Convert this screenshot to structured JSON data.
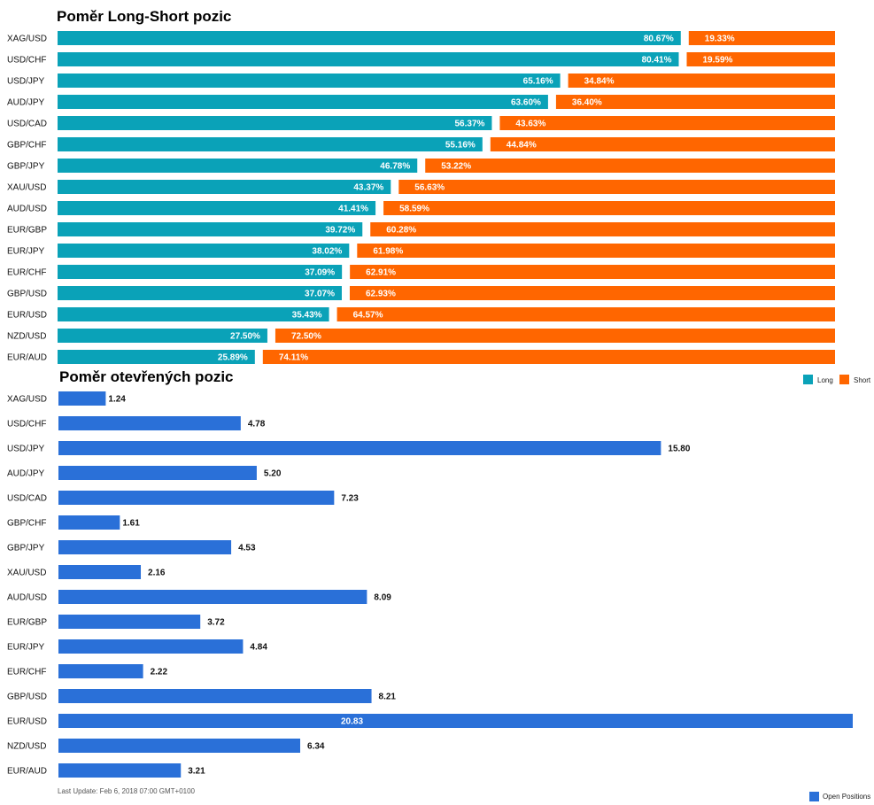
{
  "colors": {
    "long": "#0aa2b8",
    "short": "#ff6600",
    "open": "#2a70d8"
  },
  "chart_data": [
    {
      "type": "bar",
      "orientation": "horizontal",
      "stacked": true,
      "title": "Poměr Long-Short pozic",
      "categories": [
        "XAG/USD",
        "USD/CHF",
        "USD/JPY",
        "AUD/JPY",
        "USD/CAD",
        "GBP/CHF",
        "GBP/JPY",
        "XAU/USD",
        "AUD/USD",
        "EUR/GBP",
        "EUR/JPY",
        "EUR/CHF",
        "GBP/USD",
        "EUR/USD",
        "NZD/USD",
        "EUR/AUD"
      ],
      "series": [
        {
          "name": "Long",
          "values": [
            80.67,
            80.41,
            65.16,
            63.6,
            56.37,
            55.16,
            46.78,
            43.37,
            41.41,
            39.72,
            38.02,
            37.09,
            37.07,
            35.43,
            27.5,
            25.89
          ],
          "labels": [
            "80.67%",
            "80.41%",
            "65.16%",
            "63.60%",
            "56.37%",
            "55.16%",
            "46.78%",
            "43.37%",
            "41.41%",
            "39.72%",
            "38.02%",
            "37.09%",
            "37.07%",
            "35.43%",
            "27.50%",
            "25.89%"
          ]
        },
        {
          "name": "Short",
          "values": [
            19.33,
            19.59,
            34.84,
            36.4,
            43.63,
            44.84,
            53.22,
            56.63,
            58.59,
            60.28,
            61.98,
            62.91,
            62.93,
            64.57,
            72.5,
            74.11
          ],
          "labels": [
            "19.33%",
            "19.59%",
            "34.84%",
            "36.40%",
            "43.63%",
            "44.84%",
            "53.22%",
            "56.63%",
            "58.59%",
            "60.28%",
            "61.98%",
            "62.91%",
            "62.93%",
            "64.57%",
            "72.50%",
            "74.11%"
          ]
        }
      ],
      "xlim": [
        0,
        100
      ],
      "legend": "right"
    },
    {
      "type": "bar",
      "orientation": "horizontal",
      "title": "Poměr otevřených pozic",
      "categories": [
        "XAG/USD",
        "USD/CHF",
        "USD/JPY",
        "AUD/JPY",
        "USD/CAD",
        "GBP/CHF",
        "GBP/JPY",
        "XAU/USD",
        "AUD/USD",
        "EUR/GBP",
        "EUR/JPY",
        "EUR/CHF",
        "GBP/USD",
        "EUR/USD",
        "NZD/USD",
        "EUR/AUD"
      ],
      "series": [
        {
          "name": "Open Positions",
          "values": [
            1.24,
            4.78,
            15.8,
            5.2,
            7.23,
            1.61,
            4.53,
            2.16,
            8.09,
            3.72,
            4.84,
            2.22,
            8.21,
            20.83,
            6.34,
            3.21
          ],
          "labels": [
            "1.24",
            "4.78",
            "15.80",
            "5.20",
            "7.23",
            "1.61",
            "4.53",
            "2.16",
            "8.09",
            "3.72",
            "4.84",
            "2.22",
            "8.21",
            "20.83",
            "6.34",
            "3.21"
          ]
        }
      ],
      "xlim": [
        0,
        20.83
      ],
      "legend": "bottom-right"
    }
  ],
  "footer": {
    "last_update": "Last Update: Feb 6, 2018 07:00 GMT+0100"
  }
}
